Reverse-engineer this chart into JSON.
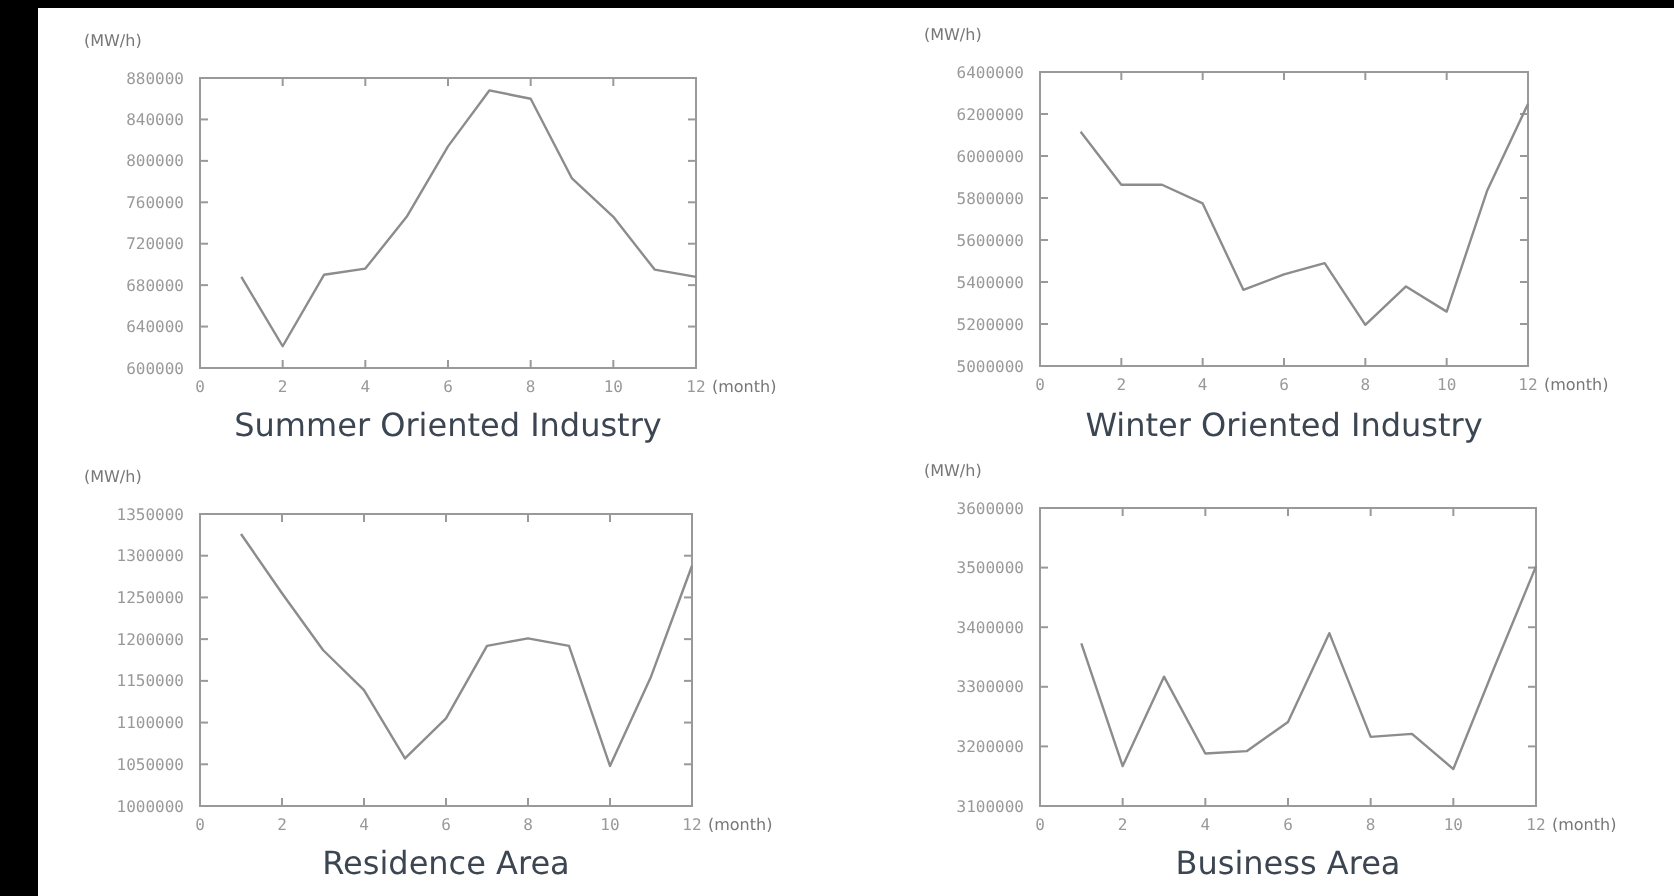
{
  "chart_data": [
    {
      "type": "line",
      "title": "Summer Oriented Industry",
      "xlabel": "(month)",
      "ylabel": "(MW/h)",
      "x": [
        1,
        2,
        3,
        4,
        5,
        6,
        7,
        8,
        9,
        10,
        11,
        12
      ],
      "values": [
        688000,
        621000,
        690000,
        696000,
        746000,
        814000,
        868000,
        860000,
        783000,
        746000,
        695000,
        688000
      ],
      "color": "#8c8c8c",
      "xlim": [
        0,
        12
      ],
      "xticks": [
        0,
        2,
        4,
        6,
        8,
        10,
        12
      ],
      "ylim": [
        600000,
        880000
      ],
      "yticks": [
        600000,
        640000,
        680000,
        720000,
        760000,
        800000,
        840000,
        880000
      ]
    },
    {
      "type": "line",
      "title": "Winter Oriented Industry",
      "xlabel": "(month)",
      "ylabel": "(MW/h)",
      "x": [
        1,
        2,
        3,
        4,
        5,
        6,
        7,
        8,
        9,
        10,
        11,
        12
      ],
      "values": [
        6115000,
        5863000,
        5863000,
        5774000,
        5363000,
        5436000,
        5490000,
        5196000,
        5379000,
        5259000,
        5837000,
        6248000
      ],
      "color": "#8c8c8c",
      "xlim": [
        0,
        12
      ],
      "xticks": [
        0,
        2,
        4,
        6,
        8,
        10,
        12
      ],
      "ylim": [
        5000000,
        6400000
      ],
      "yticks": [
        5000000,
        5200000,
        5400000,
        5600000,
        5800000,
        6000000,
        6200000,
        6400000
      ]
    },
    {
      "type": "line",
      "title": "Residence Area",
      "xlabel": "(month)",
      "ylabel": "(MW/h)",
      "x": [
        1,
        2,
        3,
        4,
        5,
        6,
        7,
        8,
        9,
        10,
        11,
        12
      ],
      "values": [
        1326000,
        1255000,
        1187000,
        1139000,
        1057000,
        1105000,
        1192000,
        1201000,
        1192000,
        1048000,
        1155000,
        1288000
      ],
      "color": "#8c8c8c",
      "xlim": [
        0,
        12
      ],
      "xticks": [
        0,
        2,
        4,
        6,
        8,
        10,
        12
      ],
      "ylim": [
        1000000,
        1350000
      ],
      "yticks": [
        1000000,
        1050000,
        1100000,
        1150000,
        1200000,
        1250000,
        1300000,
        1350000
      ]
    },
    {
      "type": "line",
      "title": "Business Area",
      "xlabel": "(month)",
      "ylabel": "(MW/h)",
      "x": [
        1,
        2,
        3,
        4,
        5,
        6,
        7,
        8,
        9,
        10,
        11,
        12
      ],
      "values": [
        3373000,
        3167000,
        3317000,
        3188000,
        3192000,
        3241000,
        3390000,
        3216000,
        3221000,
        3162000,
        3334000,
        3502000
      ],
      "color": "#8c8c8c",
      "xlim": [
        0,
        12
      ],
      "xticks": [
        0,
        2,
        4,
        6,
        8,
        10,
        12
      ],
      "ylim": [
        3100000,
        3600000
      ],
      "yticks": [
        3100000,
        3200000,
        3300000,
        3400000,
        3500000,
        3600000
      ]
    }
  ]
}
